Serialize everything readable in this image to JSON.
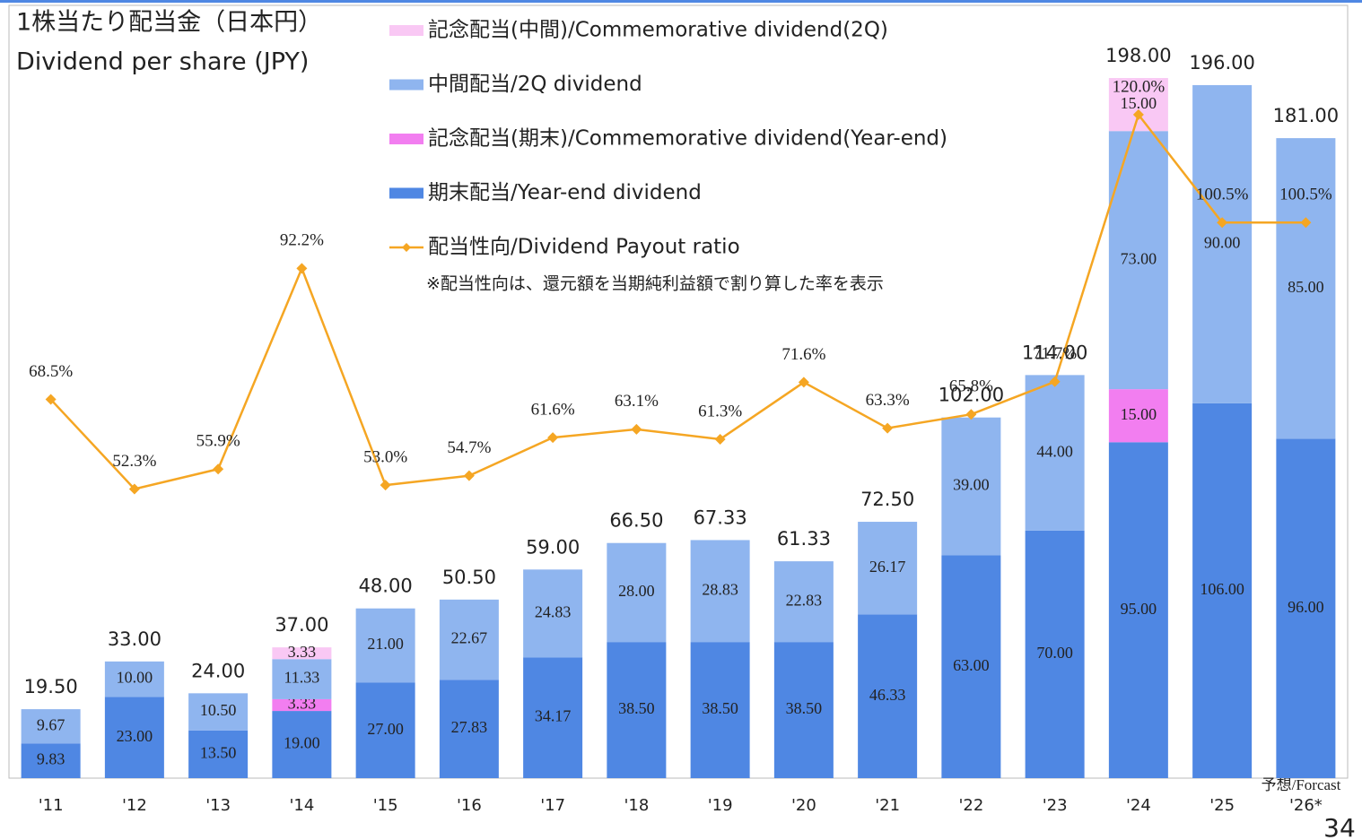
{
  "chart_data": {
    "type": "bar",
    "title": "1株当たり配当金（日本円）",
    "subtitle": "Dividend per share (JPY)",
    "categories": [
      "'11",
      "'12",
      "'13",
      "'14",
      "'15",
      "'16",
      "'17",
      "'18",
      "'19",
      "'20",
      "'21",
      "'22",
      "'23",
      "'24",
      "'25",
      "'26*"
    ],
    "series": [
      {
        "name": "期末配当/Year-end dividend",
        "color": "#4f87e3",
        "type": "bar",
        "values": [
          9.83,
          23,
          13.5,
          19,
          27,
          27.83,
          34.17,
          38.5,
          38.5,
          38.5,
          46.33,
          63,
          70,
          95,
          106,
          96
        ],
        "value_labels": [
          "9.83",
          "23.00",
          "13.50",
          "19.00",
          "27.00",
          "27.83",
          "34.17",
          "38.50",
          "38.50",
          "38.50",
          "46.33",
          "63.00",
          "70.00",
          "95.00",
          "106.00",
          "96.00"
        ]
      },
      {
        "name": "記念配当(期末)/Commemorative dividend(Year-end)",
        "color": "#f27ef0",
        "type": "bar",
        "values": [
          null,
          null,
          null,
          3.33,
          null,
          null,
          null,
          null,
          null,
          null,
          null,
          null,
          null,
          15,
          null,
          null
        ],
        "value_labels": [
          null,
          null,
          null,
          "3.33",
          null,
          null,
          null,
          null,
          null,
          null,
          null,
          null,
          null,
          "15.00",
          null,
          null
        ]
      },
      {
        "name": "中間配当/2Q dividend",
        "color": "#8fb5ef",
        "type": "bar",
        "values": [
          9.67,
          10,
          10.5,
          11.33,
          21,
          22.67,
          24.83,
          28,
          28.83,
          22.83,
          26.17,
          39,
          44,
          73,
          90,
          85
        ],
        "value_labels": [
          "9.67",
          "10.00",
          "10.50",
          "11.33",
          "21.00",
          "22.67",
          "24.83",
          "28.00",
          "28.83",
          "22.83",
          "26.17",
          "39.00",
          "44.00",
          "73.00",
          "90.00",
          "85.00"
        ]
      },
      {
        "name": "記念配当(中間)/Commemorative dividend(2Q)",
        "color": "#f9c8f4",
        "type": "bar",
        "values": [
          null,
          null,
          null,
          3.33,
          null,
          null,
          null,
          null,
          null,
          null,
          null,
          null,
          null,
          15,
          null,
          null
        ],
        "value_labels": [
          null,
          null,
          null,
          "3.33",
          null,
          null,
          null,
          null,
          null,
          null,
          null,
          null,
          null,
          "15.00",
          null,
          null
        ]
      },
      {
        "name": "配当性向/Dividend Payout ratio",
        "color": "#f5a623",
        "type": "line",
        "axis": "y2",
        "values": [
          68.5,
          52.3,
          55.9,
          92.2,
          53.0,
          54.7,
          61.6,
          63.1,
          61.3,
          71.6,
          63.3,
          65.8,
          71.7,
          120.0,
          100.5,
          100.5
        ],
        "value_labels": [
          "68.5%",
          "52.3%",
          "55.9%",
          "92.2%",
          "53.0%",
          "54.7%",
          "61.6%",
          "63.1%",
          "61.3%",
          "71.6%",
          "63.3%",
          "65.8%",
          "71.7%",
          "120.0%",
          "100.5%",
          "100.5%"
        ]
      }
    ],
    "totals": [
      19.5,
      33,
      24,
      37,
      48,
      50.5,
      59,
      66.5,
      67.33,
      61.33,
      72.5,
      102,
      114,
      198,
      196,
      181
    ],
    "total_labels": [
      "19.50",
      "33.00",
      "24.00",
      "37.00",
      "48.00",
      "50.50",
      "59.00",
      "66.50",
      "67.33",
      "61.33",
      "72.50",
      "102.00",
      "114.00",
      "198.00",
      "196.00",
      "181.00"
    ],
    "ylim": [
      0,
      215
    ],
    "y2lim": [
      0,
      137.5
    ],
    "payout_note": "※配当性向は、還元額を当期純利益額で割り算した率を表示",
    "forecast_note": "予想/Forcast",
    "page_number": "34"
  }
}
